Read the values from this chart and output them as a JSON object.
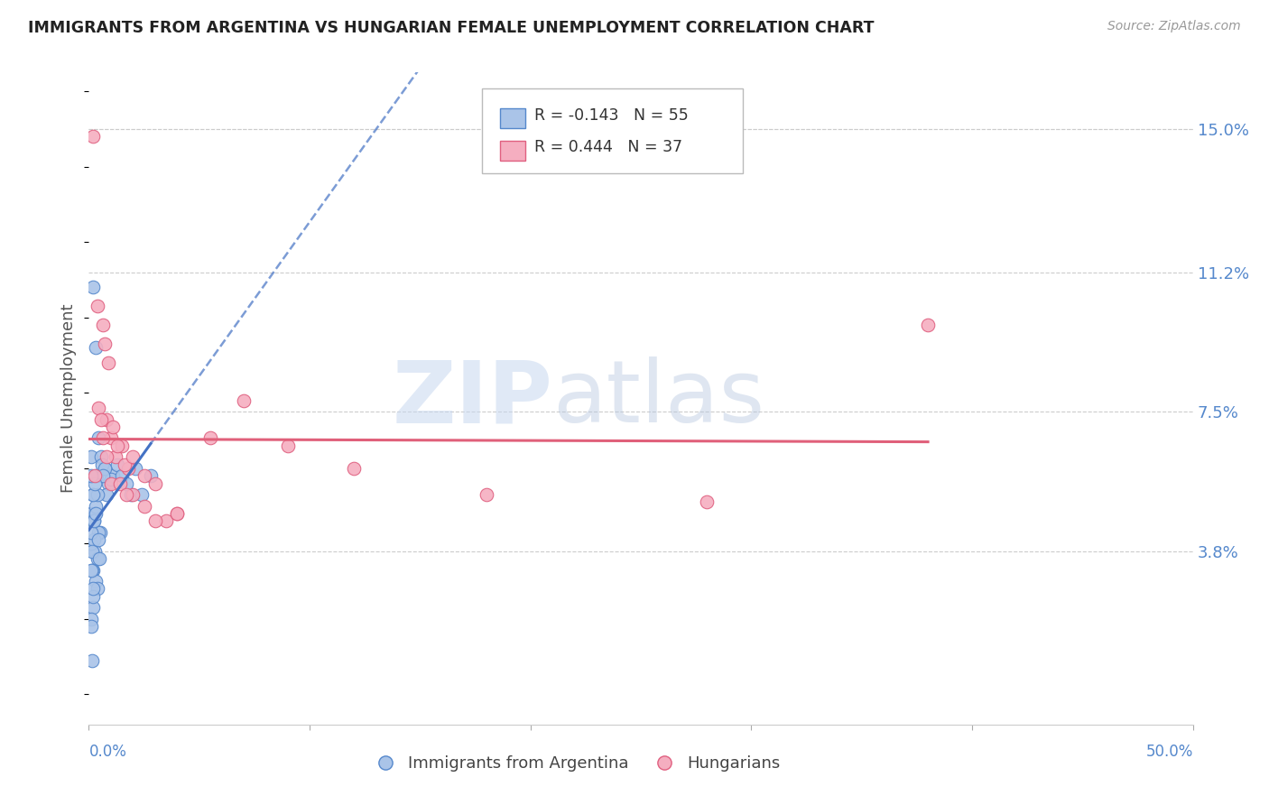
{
  "title": "IMMIGRANTS FROM ARGENTINA VS HUNGARIAN FEMALE UNEMPLOYMENT CORRELATION CHART",
  "source": "Source: ZipAtlas.com",
  "ylabel": "Female Unemployment",
  "yticks": [
    0.0,
    3.8,
    7.5,
    11.2,
    15.0
  ],
  "ytick_labels": [
    "",
    "3.8%",
    "7.5%",
    "11.2%",
    "15.0%"
  ],
  "xlim": [
    0.0,
    50.0
  ],
  "ylim": [
    -0.8,
    16.5
  ],
  "legend1_label": "R = -0.143   N = 55",
  "legend2_label": "R = 0.444   N = 37",
  "scatter1_color": "#aac4e8",
  "scatter2_color": "#f5aec0",
  "scatter1_edge": "#5588cc",
  "scatter2_edge": "#e06080",
  "line1_color": "#4472c4",
  "line2_color": "#e0607a",
  "grid_color": "#cccccc",
  "background_color": "#ffffff",
  "title_color": "#222222",
  "axis_label_color": "#555555",
  "right_tick_color": "#5588cc",
  "argentina_x": [
    0.2,
    0.3,
    0.1,
    0.45,
    0.2,
    0.35,
    0.28,
    0.55,
    0.7,
    0.9,
    0.6,
    1.1,
    0.8,
    1.3,
    1.0,
    0.25,
    0.18,
    0.12,
    0.38,
    0.52,
    0.72,
    0.28,
    0.42,
    0.65,
    0.22,
    0.15,
    0.3,
    0.4,
    0.18,
    0.12,
    0.1,
    0.2,
    0.3,
    0.38,
    0.22,
    0.14,
    0.2,
    0.28,
    0.12,
    0.18,
    0.1,
    0.15,
    1.5,
    1.9,
    1.7,
    2.1,
    2.4,
    2.8,
    0.12,
    0.22,
    0.32,
    0.42,
    0.48,
    0.2,
    0.12
  ],
  "argentina_y": [
    10.8,
    9.2,
    6.3,
    6.8,
    5.3,
    5.8,
    4.8,
    6.3,
    6.0,
    5.6,
    6.1,
    5.8,
    5.3,
    6.1,
    5.7,
    3.8,
    3.3,
    4.0,
    3.6,
    4.3,
    6.0,
    4.8,
    4.3,
    5.8,
    4.6,
    3.3,
    3.0,
    2.8,
    2.3,
    2.0,
    4.8,
    4.6,
    5.0,
    5.3,
    4.1,
    3.8,
    5.3,
    5.6,
    3.3,
    2.6,
    1.8,
    0.9,
    5.8,
    5.3,
    5.6,
    6.0,
    5.3,
    5.8,
    4.3,
    4.6,
    4.8,
    4.1,
    3.6,
    2.8,
    5.8
  ],
  "hungarian_x": [
    0.18,
    0.25,
    0.38,
    0.65,
    0.8,
    1.0,
    1.2,
    1.5,
    1.8,
    2.0,
    2.5,
    3.0,
    3.5,
    4.0,
    0.72,
    0.9,
    1.1,
    1.3,
    1.6,
    0.45,
    0.55,
    0.65,
    0.8,
    1.0,
    1.4,
    1.7,
    2.0,
    2.5,
    3.0,
    4.0,
    5.5,
    7.0,
    9.0,
    12.0,
    18.0,
    28.0,
    38.0
  ],
  "hungarian_y": [
    14.8,
    5.8,
    10.3,
    9.8,
    7.3,
    6.8,
    6.3,
    6.6,
    6.0,
    5.3,
    5.0,
    5.6,
    4.6,
    4.8,
    9.3,
    8.8,
    7.1,
    6.6,
    6.1,
    7.6,
    7.3,
    6.8,
    6.3,
    5.6,
    5.6,
    5.3,
    6.3,
    5.8,
    4.6,
    4.8,
    6.8,
    7.8,
    6.6,
    6.0,
    5.3,
    5.1,
    9.8
  ]
}
